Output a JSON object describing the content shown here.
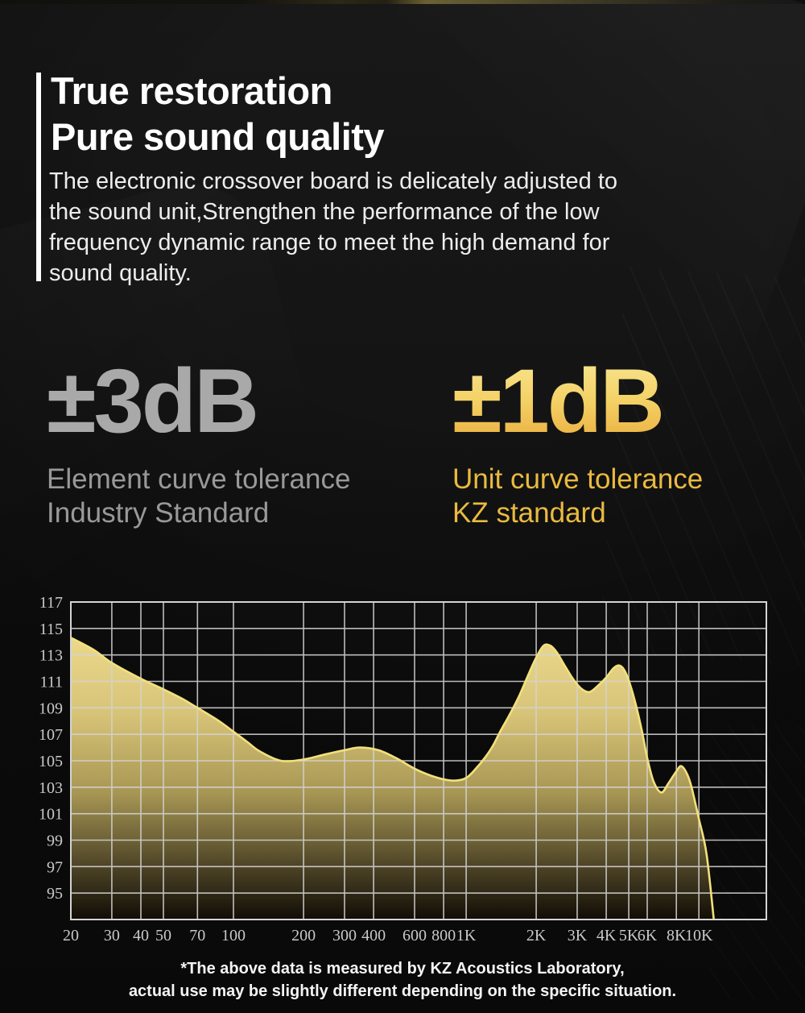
{
  "header": {
    "title_line1": "True restoration",
    "title_line2": "Pure sound quality",
    "description_lines": [
      "The electronic crossover board is delicately adjusted to",
      "the sound unit,Strengthen the performance of the low",
      "frequency dynamic range to meet the high demand for",
      "sound quality."
    ]
  },
  "stats": [
    {
      "value": "±3dB",
      "label_line1": "Element curve tolerance",
      "label_line2": "Industry Standard",
      "color": "#a9a9a9"
    },
    {
      "value": "±1dB",
      "label_line1": "Unit curve tolerance",
      "label_line2": "KZ standard",
      "color": "#eaba40"
    }
  ],
  "chart_data": {
    "type": "area",
    "title": "",
    "x_scale": "log",
    "grid": true,
    "x_range": [
      20,
      19500
    ],
    "y_range": [
      93,
      117
    ],
    "y_ticks": [
      117,
      115,
      113,
      111,
      109,
      107,
      105,
      103,
      101,
      99,
      97,
      95
    ],
    "x_tick_values": [
      20,
      30,
      40,
      50,
      70,
      100,
      200,
      300,
      400,
      600,
      800,
      1000,
      2000,
      3000,
      4000,
      5000,
      6000,
      8000,
      10000
    ],
    "x_tick_labels": [
      "20",
      "30",
      "40",
      "50",
      "70",
      "100",
      "200",
      "300",
      "400",
      "600",
      "800",
      "1K",
      "2K",
      "3K",
      "4K",
      "5K",
      "6K",
      "8K",
      "10K"
    ],
    "series": [
      {
        "name": "frequency-response-dB",
        "points": [
          [
            20,
            114.3
          ],
          [
            25,
            113.4
          ],
          [
            30,
            112.4
          ],
          [
            40,
            111.2
          ],
          [
            50,
            110.4
          ],
          [
            60,
            109.7
          ],
          [
            70,
            109.0
          ],
          [
            85,
            108.1
          ],
          [
            100,
            107.2
          ],
          [
            115,
            106.4
          ],
          [
            130,
            105.7
          ],
          [
            160,
            105.0
          ],
          [
            200,
            105.1
          ],
          [
            250,
            105.5
          ],
          [
            300,
            105.8
          ],
          [
            350,
            106.0
          ],
          [
            420,
            105.8
          ],
          [
            500,
            105.2
          ],
          [
            600,
            104.4
          ],
          [
            700,
            103.9
          ],
          [
            800,
            103.6
          ],
          [
            900,
            103.5
          ],
          [
            1000,
            103.7
          ],
          [
            1100,
            104.4
          ],
          [
            1200,
            105.2
          ],
          [
            1300,
            106.1
          ],
          [
            1400,
            107.2
          ],
          [
            1550,
            108.6
          ],
          [
            1700,
            110.0
          ],
          [
            1850,
            111.5
          ],
          [
            2000,
            112.8
          ],
          [
            2150,
            113.7
          ],
          [
            2300,
            113.7
          ],
          [
            2450,
            113.2
          ],
          [
            2650,
            112.2
          ],
          [
            2900,
            111.1
          ],
          [
            3150,
            110.4
          ],
          [
            3400,
            110.2
          ],
          [
            3700,
            110.7
          ],
          [
            4000,
            111.3
          ],
          [
            4300,
            112.0
          ],
          [
            4550,
            112.2
          ],
          [
            4800,
            111.8
          ],
          [
            5100,
            110.6
          ],
          [
            5400,
            109.0
          ],
          [
            5700,
            107.2
          ],
          [
            6000,
            105.2
          ],
          [
            6400,
            103.4
          ],
          [
            6900,
            102.6
          ],
          [
            7400,
            103.3
          ],
          [
            8000,
            104.2
          ],
          [
            8400,
            104.6
          ],
          [
            8900,
            104.0
          ],
          [
            9300,
            103.0
          ],
          [
            10000,
            100.6
          ],
          [
            10800,
            97.9
          ],
          [
            11700,
            92.3
          ]
        ]
      }
    ],
    "colors": {
      "line": "#f2e07c",
      "grid": "#d4d4d4",
      "tick_text": "#c9c9c9",
      "fill_stops": [
        [
          "0",
          "#f4e194"
        ],
        [
          "0.35",
          "#d8c478"
        ],
        [
          "0.6",
          "#a89754"
        ],
        [
          "0.85",
          "#473e23"
        ],
        [
          "1",
          "#110d05"
        ]
      ]
    }
  },
  "footer": {
    "line1": "*The above data is measured by KZ Acoustics Laboratory,",
    "line2": "actual use may be slightly different depending on the specific situation."
  }
}
